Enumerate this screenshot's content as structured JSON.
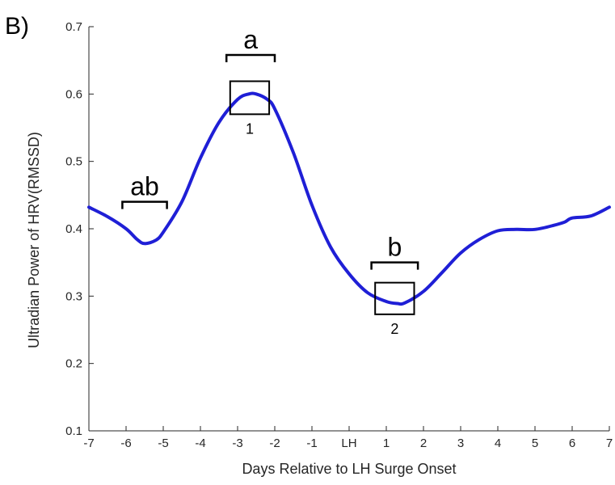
{
  "chart_data": {
    "type": "line",
    "panel_label": "B)",
    "xlabel": "Days Relative to LH Surge Onset",
    "ylabel": "Ultradian Power of HRV(RMSSD)",
    "xlim": [
      -7,
      7
    ],
    "ylim": [
      0.1,
      0.7
    ],
    "x_ticks": [
      -7,
      -6,
      -5,
      -4,
      -3,
      -2,
      -1,
      0,
      1,
      2,
      3,
      4,
      5,
      6,
      7
    ],
    "x_tick_labels": [
      "-7",
      "-6",
      "-5",
      "-4",
      "-3",
      "-2",
      "-1",
      "LH",
      "1",
      "2",
      "3",
      "4",
      "5",
      "6",
      "7"
    ],
    "y_ticks": [
      0.1,
      0.2,
      0.3,
      0.4,
      0.5,
      0.6,
      0.7
    ],
    "y_tick_labels": [
      "0.1",
      "0.2",
      "0.3",
      "0.4",
      "0.5",
      "0.6",
      "0.7"
    ],
    "grid": false,
    "series": [
      {
        "color": "#1f1fd6",
        "x": [
          -7,
          -6.5,
          -6,
          -5.7,
          -5.5,
          -5.2,
          -5,
          -4.5,
          -4,
          -3.5,
          -3,
          -2.7,
          -2.5,
          -2.2,
          -2,
          -1.5,
          -1,
          -0.5,
          0,
          0.5,
          1,
          1.3,
          1.5,
          2,
          2.5,
          3,
          3.5,
          4,
          4.5,
          5,
          5.5,
          5.8,
          6,
          6.5,
          7
        ],
        "y": [
          0.432,
          0.418,
          0.4,
          0.384,
          0.378,
          0.383,
          0.395,
          0.44,
          0.505,
          0.558,
          0.592,
          0.6,
          0.6,
          0.592,
          0.578,
          0.513,
          0.435,
          0.373,
          0.333,
          0.305,
          0.292,
          0.289,
          0.29,
          0.307,
          0.335,
          0.364,
          0.384,
          0.397,
          0.399,
          0.399,
          0.405,
          0.41,
          0.416,
          0.419,
          0.432
        ]
      }
    ],
    "annotations": [
      {
        "type": "bracket",
        "label": "ab",
        "x_start": -6.1,
        "x_end": -4.9,
        "y": 0.44
      },
      {
        "type": "bracket",
        "label": "a",
        "x_start": -3.3,
        "x_end": -2.0,
        "y": 0.658
      },
      {
        "type": "bracket",
        "label": "b",
        "x_start": 0.6,
        "x_end": 1.85,
        "y": 0.35
      },
      {
        "type": "box",
        "label": "1",
        "x_start": -3.2,
        "x_end": -2.15,
        "y_low": 0.57,
        "y_high": 0.619
      },
      {
        "type": "box",
        "label": "2",
        "x_start": 0.7,
        "x_end": 1.75,
        "y_low": 0.273,
        "y_high": 0.32
      }
    ]
  }
}
